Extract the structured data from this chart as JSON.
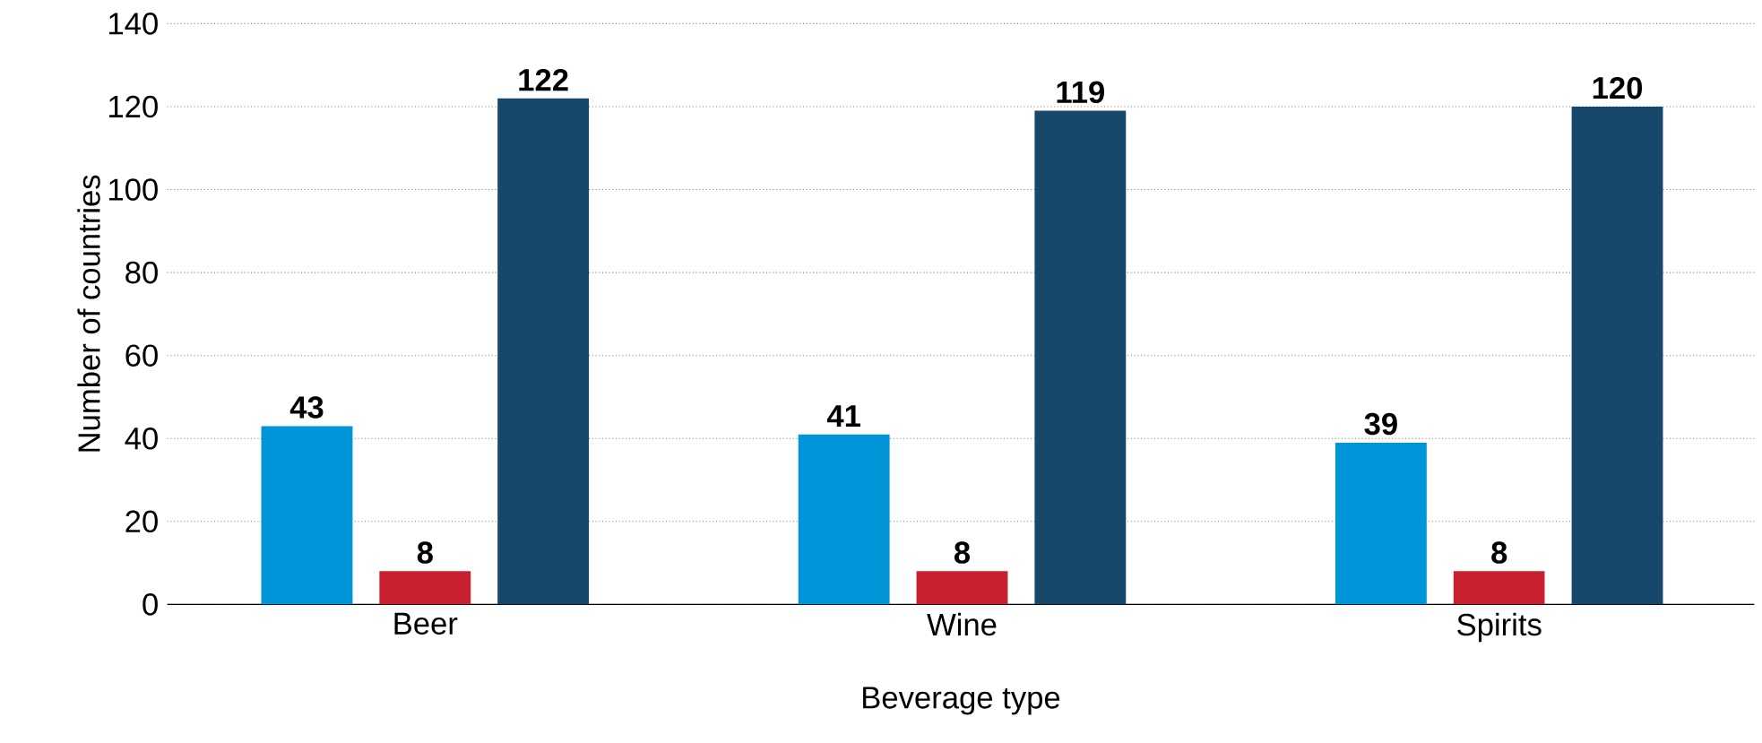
{
  "chart_data": {
    "type": "bar",
    "xlabel": "Beverage type",
    "ylabel": "Number of countries",
    "categories": [
      "Beer",
      "Wine",
      "Spirits"
    ],
    "series": [
      {
        "color": "#0095d9",
        "values": [
          43,
          41,
          39
        ]
      },
      {
        "color": "#c8202f",
        "values": [
          8,
          8,
          8
        ]
      },
      {
        "color": "#17476a",
        "values": [
          122,
          119,
          120
        ]
      }
    ],
    "ylim": [
      0,
      140
    ],
    "yticks": [
      0,
      20,
      40,
      60,
      80,
      100,
      120,
      140
    ],
    "grid": "y",
    "data_labels": true
  }
}
